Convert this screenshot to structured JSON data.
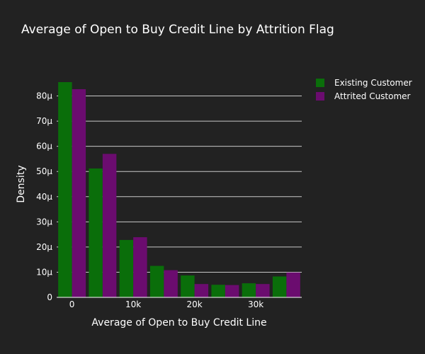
{
  "chart_data": {
    "type": "bar",
    "title": "Average of Open to Buy Credit Line by Attrition Flag",
    "xlabel": "Average of Open to Buy Credit Line",
    "ylabel": "Density",
    "x_tick_labels": [
      "0",
      "10k",
      "20k",
      "30k"
    ],
    "x_tick_values": [
      0,
      10000,
      20000,
      30000
    ],
    "y_tick_labels": [
      "0",
      "10μ",
      "20μ",
      "30μ",
      "40μ",
      "50μ",
      "60μ",
      "70μ",
      "80μ"
    ],
    "y_tick_values": [
      0,
      10,
      20,
      30,
      40,
      50,
      60,
      70,
      80
    ],
    "y_unit": "μ (1e-6)",
    "ylim": [
      0,
      90
    ],
    "xlim": [
      -2500,
      37500
    ],
    "grid": true,
    "legend_position": "top-right",
    "bin_centers": [
      0,
      5000,
      10000,
      15000,
      20000,
      25000,
      30000,
      35000
    ],
    "series": [
      {
        "name": "Existing Customer",
        "color": "#0a6e0a",
        "values": [
          85.5,
          51.2,
          22.8,
          12.5,
          8.7,
          5.0,
          5.6,
          8.3
        ]
      },
      {
        "name": "Attrited Customer",
        "color": "#6b0c6f",
        "values": [
          82.7,
          57.0,
          23.9,
          10.8,
          5.3,
          4.9,
          5.3,
          9.9
        ]
      }
    ]
  }
}
